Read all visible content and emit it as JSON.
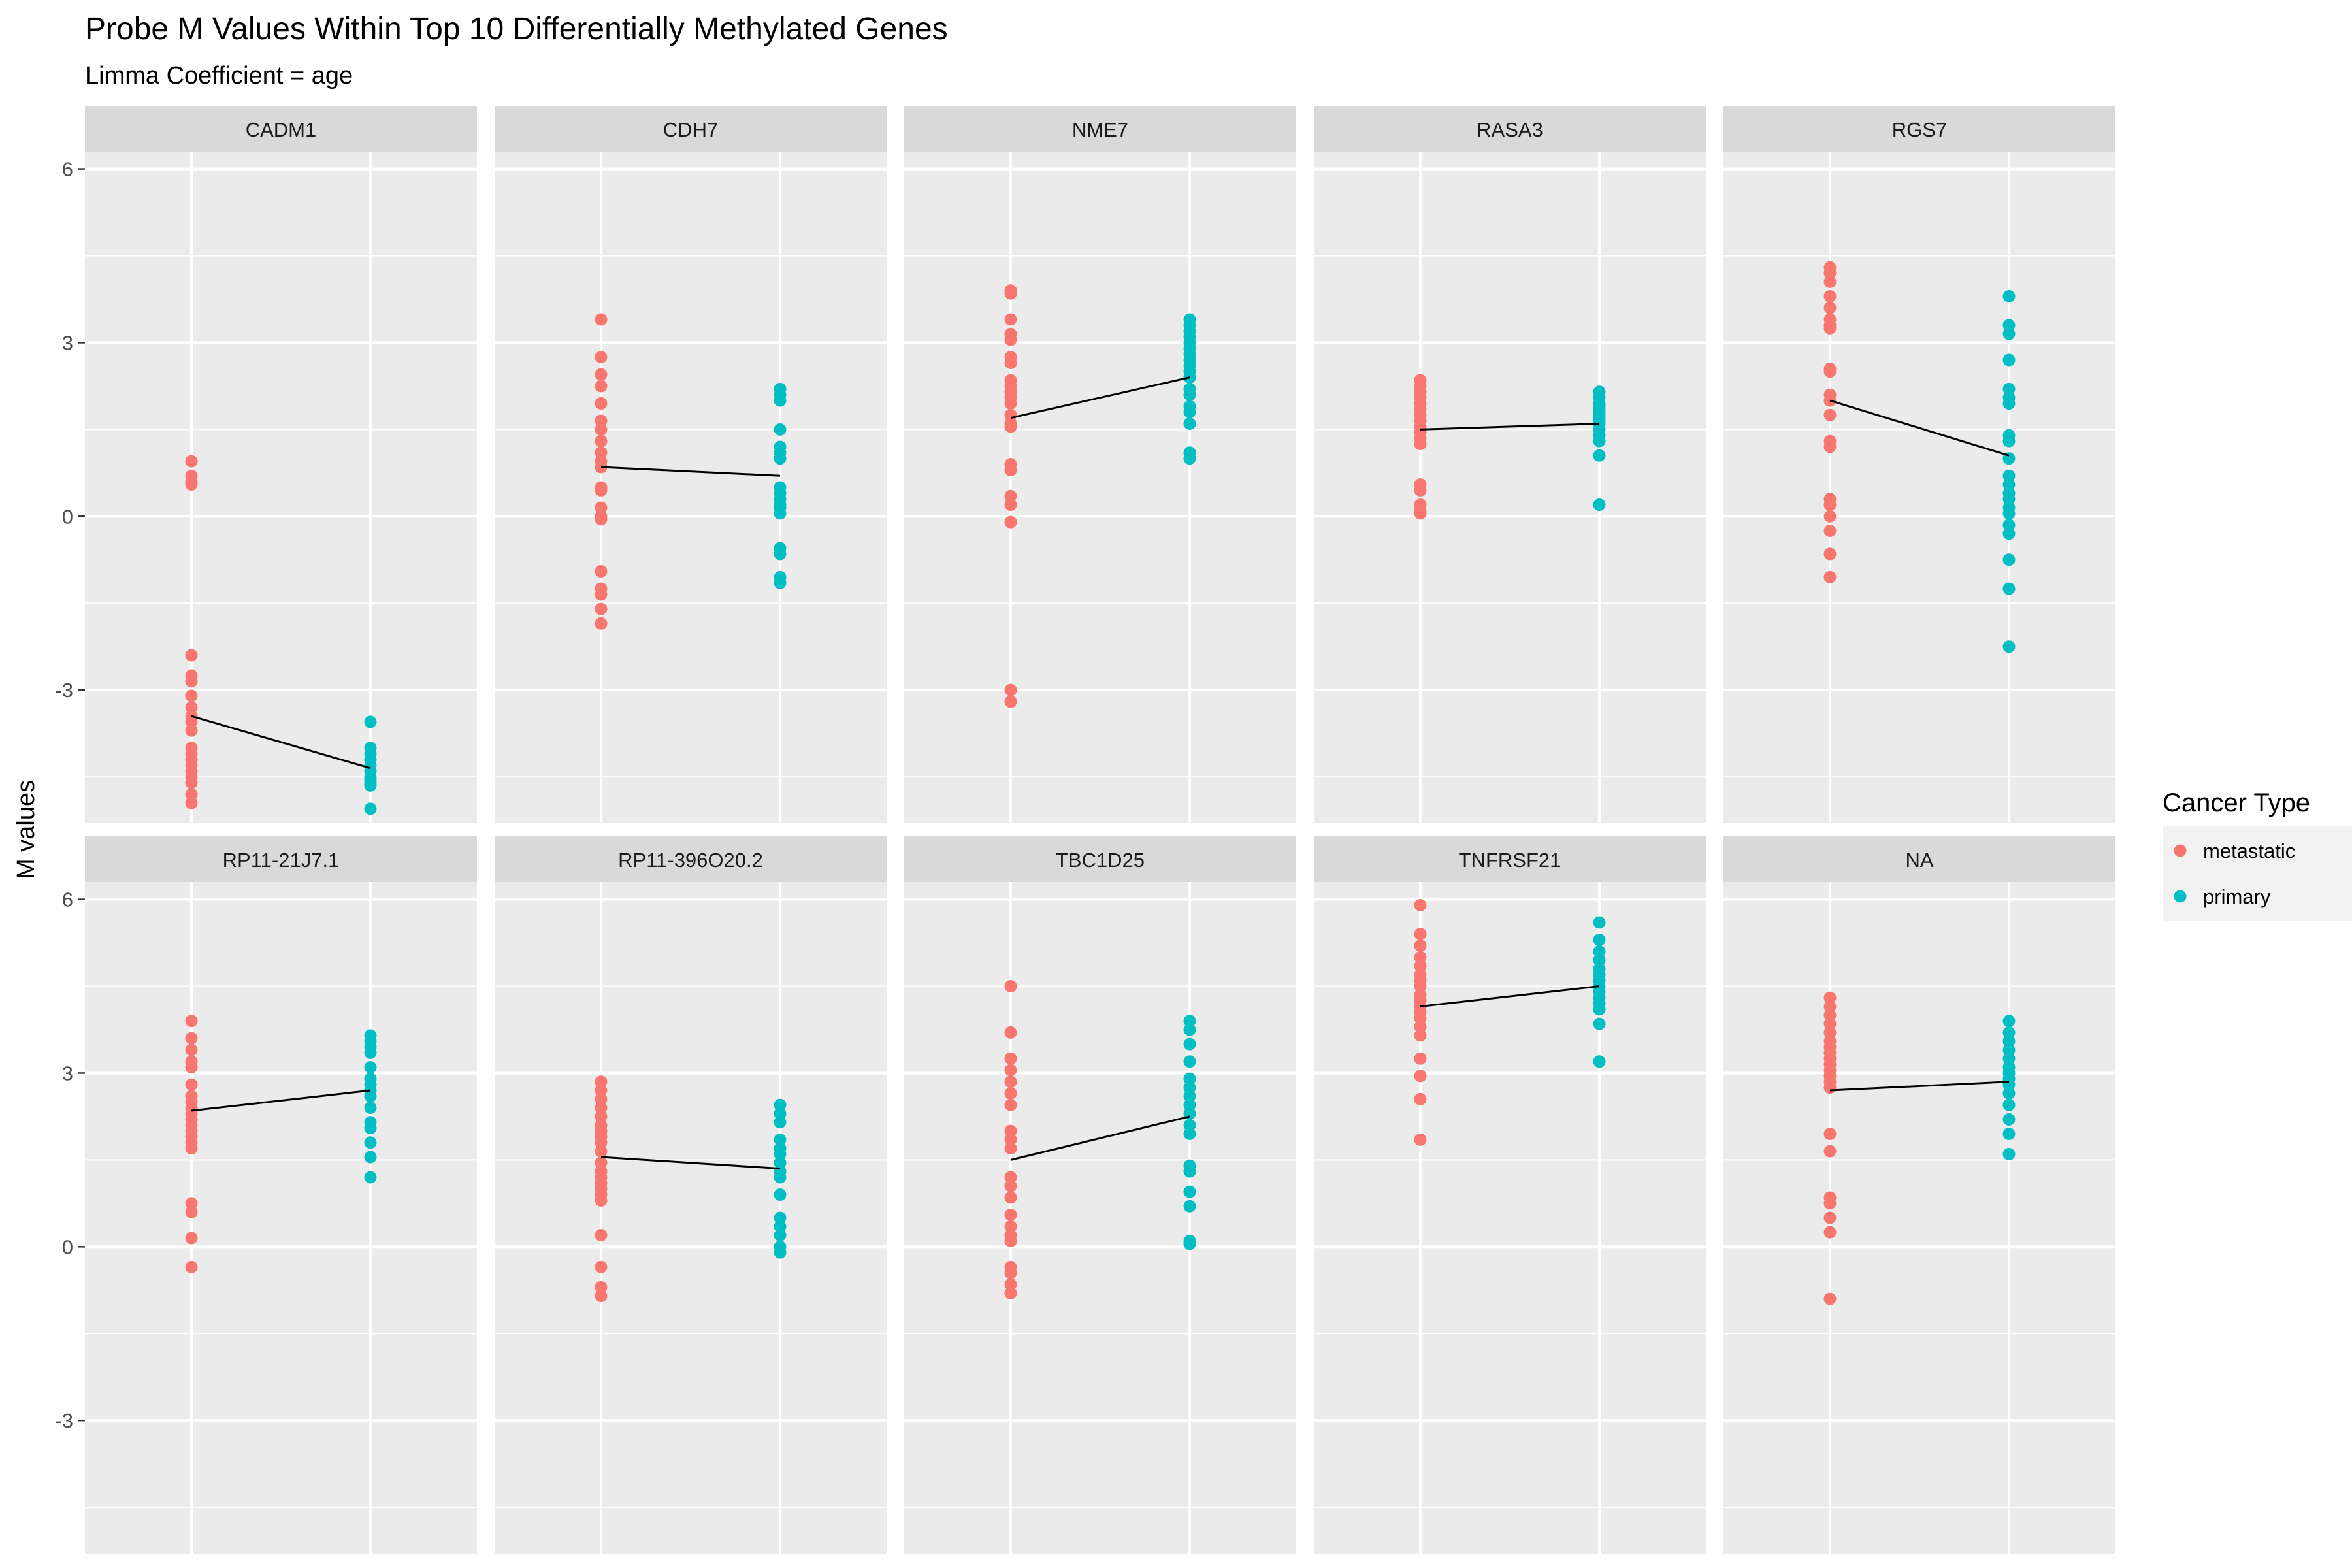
{
  "chart_data": {
    "type": "scatter",
    "title": "Probe M Values Within Top 10 Differentially Methylated Genes",
    "subtitle": "Limma Coefficient = age",
    "ylabel": "M values",
    "xlabel": "",
    "ylim": [
      -5.3,
      6.3
    ],
    "yticks": [
      -3,
      0,
      3,
      6
    ],
    "x_categories": [
      "metastatic",
      "primary"
    ],
    "legend": {
      "title": "Cancer Type",
      "position": "right",
      "entries": [
        {
          "label": "metastatic",
          "color": "#F8766D"
        },
        {
          "label": "primary",
          "color": "#00BFC4"
        }
      ]
    },
    "grid": true,
    "trend_line_color": "#000000",
    "panels": [
      {
        "name": "CADM1",
        "metastatic": [
          0.95,
          0.7,
          0.6,
          0.55,
          -2.4,
          -2.75,
          -2.85,
          -3.1,
          -3.3,
          -3.45,
          -3.55,
          -3.7,
          -4.0,
          -4.1,
          -4.2,
          -4.3,
          -4.4,
          -4.5,
          -4.6,
          -4.8,
          -4.95
        ],
        "primary": [
          -3.55,
          -4.0,
          -4.1,
          -4.2,
          -4.3,
          -4.4,
          -4.5,
          -4.55,
          -4.6,
          -4.65,
          -5.05
        ],
        "mean_metastatic": -3.45,
        "mean_primary": -4.35
      },
      {
        "name": "CDH7",
        "metastatic": [
          3.4,
          2.75,
          2.45,
          2.25,
          1.95,
          1.65,
          1.5,
          1.3,
          1.1,
          0.95,
          0.85,
          0.5,
          0.45,
          0.15,
          0.0,
          -0.05,
          -0.95,
          -1.25,
          -1.35,
          -1.6,
          -1.85
        ],
        "primary": [
          2.2,
          2.1,
          2.0,
          1.5,
          1.2,
          1.1,
          1.0,
          0.5,
          0.4,
          0.3,
          0.2,
          0.15,
          0.05,
          -0.55,
          -0.65,
          -1.05,
          -1.15
        ],
        "mean_metastatic": 0.85,
        "mean_primary": 0.7
      },
      {
        "name": "NME7",
        "metastatic": [
          3.9,
          3.85,
          3.4,
          3.15,
          3.05,
          2.75,
          2.65,
          2.35,
          2.25,
          2.15,
          2.05,
          1.95,
          1.75,
          1.6,
          1.55,
          0.9,
          0.8,
          0.35,
          0.2,
          -0.1,
          -3.0,
          -3.2
        ],
        "primary": [
          3.4,
          3.3,
          3.2,
          3.1,
          3.0,
          2.9,
          2.8,
          2.7,
          2.6,
          2.5,
          2.4,
          2.2,
          2.1,
          1.9,
          1.8,
          1.6,
          1.1,
          1.0
        ],
        "mean_metastatic": 1.7,
        "mean_primary": 2.4
      },
      {
        "name": "RASA3",
        "metastatic": [
          2.35,
          2.25,
          2.15,
          2.05,
          1.95,
          1.85,
          1.75,
          1.65,
          1.55,
          1.45,
          1.35,
          1.25,
          0.55,
          0.45,
          0.2,
          0.1,
          0.05
        ],
        "primary": [
          2.15,
          2.05,
          1.95,
          1.9,
          1.85,
          1.8,
          1.75,
          1.7,
          1.65,
          1.6,
          1.5,
          1.4,
          1.3,
          1.05,
          0.2
        ],
        "mean_metastatic": 1.5,
        "mean_primary": 1.6
      },
      {
        "name": "RGS7",
        "metastatic": [
          4.3,
          4.2,
          4.05,
          3.8,
          3.6,
          3.4,
          3.3,
          3.25,
          2.55,
          2.5,
          2.1,
          2.0,
          1.75,
          1.3,
          1.2,
          0.3,
          0.2,
          0.0,
          -0.25,
          -0.65,
          -1.05
        ],
        "primary": [
          3.8,
          3.3,
          3.15,
          2.7,
          2.2,
          2.05,
          1.95,
          1.4,
          1.3,
          1.0,
          0.7,
          0.55,
          0.4,
          0.3,
          0.15,
          0.05,
          -0.15,
          -0.3,
          -0.75,
          -1.25,
          -2.25
        ],
        "mean_metastatic": 2.0,
        "mean_primary": 1.05
      },
      {
        "name": "RP11-21J7.1",
        "metastatic": [
          3.9,
          3.6,
          3.4,
          3.2,
          3.1,
          2.8,
          2.6,
          2.5,
          2.4,
          2.3,
          2.2,
          2.1,
          2.0,
          1.9,
          1.8,
          1.7,
          0.75,
          0.6,
          0.15,
          -0.35
        ],
        "primary": [
          3.65,
          3.55,
          3.45,
          3.35,
          3.1,
          2.9,
          2.8,
          2.7,
          2.6,
          2.4,
          2.15,
          2.05,
          1.8,
          1.55,
          1.2
        ],
        "mean_metastatic": 2.35,
        "mean_primary": 2.7
      },
      {
        "name": "RP11-396O20.2",
        "metastatic": [
          2.85,
          2.7,
          2.55,
          2.4,
          2.25,
          2.1,
          2.0,
          1.9,
          1.8,
          1.65,
          1.45,
          1.3,
          1.2,
          1.1,
          1.0,
          0.9,
          0.8,
          0.2,
          -0.35,
          -0.7,
          -0.85
        ],
        "primary": [
          2.45,
          2.3,
          2.15,
          1.85,
          1.7,
          1.6,
          1.45,
          1.3,
          1.2,
          0.9,
          0.5,
          0.35,
          0.2,
          0.0,
          -0.1
        ],
        "mean_metastatic": 1.55,
        "mean_primary": 1.35
      },
      {
        "name": "TBC1D25",
        "metastatic": [
          4.5,
          3.7,
          3.25,
          3.05,
          2.85,
          2.65,
          2.45,
          2.0,
          1.85,
          1.7,
          1.2,
          1.05,
          0.85,
          0.55,
          0.35,
          0.2,
          0.1,
          -0.35,
          -0.45,
          -0.65,
          -0.8
        ],
        "primary": [
          3.9,
          3.75,
          3.5,
          3.2,
          2.9,
          2.75,
          2.6,
          2.45,
          2.3,
          2.1,
          1.95,
          1.4,
          1.3,
          0.95,
          0.7,
          0.1,
          0.05
        ],
        "mean_metastatic": 1.5,
        "mean_primary": 2.25
      },
      {
        "name": "TNFRSF21",
        "metastatic": [
          5.9,
          5.4,
          5.2,
          5.0,
          4.85,
          4.7,
          4.6,
          4.5,
          4.35,
          4.25,
          4.15,
          4.05,
          3.95,
          3.8,
          3.65,
          3.25,
          2.95,
          2.55,
          1.85
        ],
        "primary": [
          5.6,
          5.3,
          5.1,
          4.95,
          4.8,
          4.7,
          4.6,
          4.5,
          4.4,
          4.3,
          4.2,
          4.1,
          3.85,
          3.2
        ],
        "mean_metastatic": 4.15,
        "mean_primary": 4.5
      },
      {
        "name": "NA",
        "metastatic": [
          4.3,
          4.15,
          4.0,
          3.85,
          3.7,
          3.55,
          3.45,
          3.35,
          3.25,
          3.15,
          3.05,
          2.95,
          2.85,
          2.75,
          1.95,
          1.65,
          0.85,
          0.75,
          0.5,
          0.25,
          -0.9
        ],
        "primary": [
          3.9,
          3.7,
          3.55,
          3.4,
          3.25,
          3.1,
          3.0,
          2.9,
          2.8,
          2.65,
          2.45,
          2.2,
          1.95,
          1.6
        ],
        "mean_metastatic": 2.7,
        "mean_primary": 2.85
      }
    ]
  }
}
